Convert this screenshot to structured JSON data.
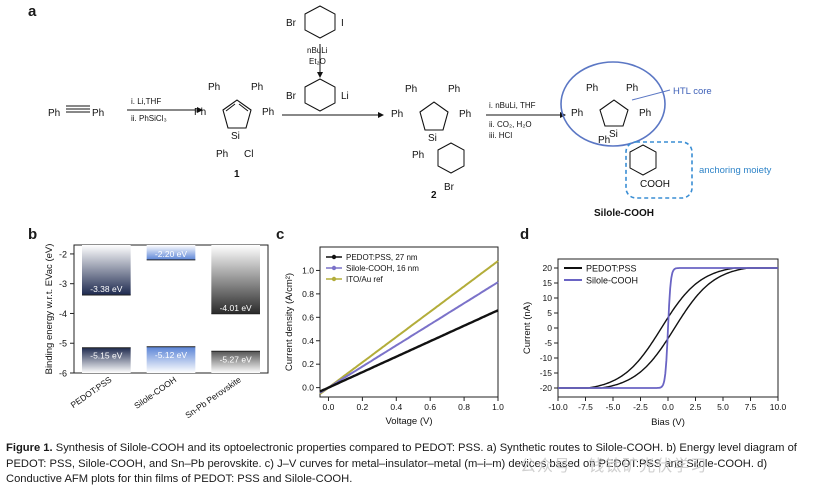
{
  "panel_labels": {
    "a": "a",
    "b": "b",
    "c": "c",
    "d": "d"
  },
  "scheme": {
    "reagent_top": "Br",
    "reagent_top_right": "I",
    "step_top_1": "nBuLi",
    "step_top_2": "Et₂O",
    "lithium_br": "Br",
    "lithium_li": "Li",
    "step1_a": "i. Li,THF",
    "step1_b": "ii. PhSiCl₃",
    "ph": "Ph",
    "si": "Si",
    "cl": "Cl",
    "br": "Br",
    "compound1": "1",
    "compound2": "2",
    "step3_a": "i. nBuLi, THF",
    "step3_b": "ii. CO₂, H₂O",
    "step3_c": "iii. HCl",
    "htl_core": "HTL core",
    "anchoring": "anchoring moiety",
    "cooh": "COOH",
    "product": "Silole-COOH"
  },
  "chart_data": [
    {
      "type": "bar",
      "panel": "b",
      "ylabel": "Binding energy w.r.t. EVac (eV)",
      "ylim": [
        -6,
        -1.7
      ],
      "yticks": [
        "-2",
        "-3",
        "-4",
        "-5",
        "-6"
      ],
      "categories": [
        "PEDOT:PSS",
        "Silole-COOH",
        "Sn-Pb Perovskite"
      ],
      "series": [
        {
          "values": [
            -3.38,
            -2.2,
            -4.01
          ],
          "labels": [
            "-3.38 eV",
            "-2.20 eV",
            "-4.01 eV"
          ]
        },
        {
          "values": [
            -5.15,
            -5.12,
            -5.27
          ],
          "labels": [
            "-5.15 eV",
            "-5.12 eV",
            "-5.27 eV"
          ]
        }
      ]
    },
    {
      "type": "line",
      "panel": "c",
      "xlabel": "Voltage (V)",
      "ylabel": "Current density (A/cm²)",
      "xlim": [
        -0.05,
        1.0
      ],
      "ylim": [
        -0.08,
        1.2
      ],
      "xticks": [
        "0.0",
        "0.2",
        "0.4",
        "0.6",
        "0.8",
        "1.0"
      ],
      "yticks": [
        "0.0",
        "0.2",
        "0.4",
        "0.6",
        "0.8",
        "1.0"
      ],
      "legend": "top-left",
      "series": [
        {
          "name": "PEDOT:PSS, 27 nm",
          "color": "#111111",
          "marker": "square",
          "slope": 0.66
        },
        {
          "name": "Silole-COOH, 16 nm",
          "color": "#7b72c9",
          "marker": "circle",
          "slope": 0.9
        },
        {
          "name": "ITO/Au ref",
          "color": "#b3ad3a",
          "marker": "diamond",
          "slope": 1.08
        }
      ]
    },
    {
      "type": "line",
      "panel": "d",
      "xlabel": "Bias (V)",
      "ylabel": "Current (nA)",
      "xlim": [
        -10,
        10
      ],
      "ylim": [
        -23,
        23
      ],
      "xticks": [
        "-10.0",
        "-7.5",
        "-5.0",
        "-2.5",
        "0.0",
        "2.5",
        "5.0",
        "7.5",
        "10.0"
      ],
      "yticks": [
        "-20",
        "-15",
        "-10",
        "-5",
        "0",
        "5",
        "10",
        "15",
        "20"
      ],
      "legend": "top-left",
      "series": [
        {
          "name": "PEDOT:PSS",
          "color": "#111111"
        },
        {
          "name": "Silole-COOH",
          "color": "#6a64c4"
        }
      ]
    }
  ],
  "caption": {
    "lead": "Figure 1.",
    "text": " Synthesis of Silole-COOH and its optoelectronic properties compared to PEDOT: PSS. a) Synthetic routes to Silole-COOH. b) Energy level diagram of PEDOT: PSS, Silole-COOH, and Sn–Pb perovskite. c) J–V curves for metal–insulator–metal (m–i–m) devices based on PEDOT:PSS and Silole-COOH. d) Conductive AFM plots for thin films of PEDOT: PSS and Silole-COOH."
  },
  "watermark": "公众号 · 钱钛矿光伏学习"
}
